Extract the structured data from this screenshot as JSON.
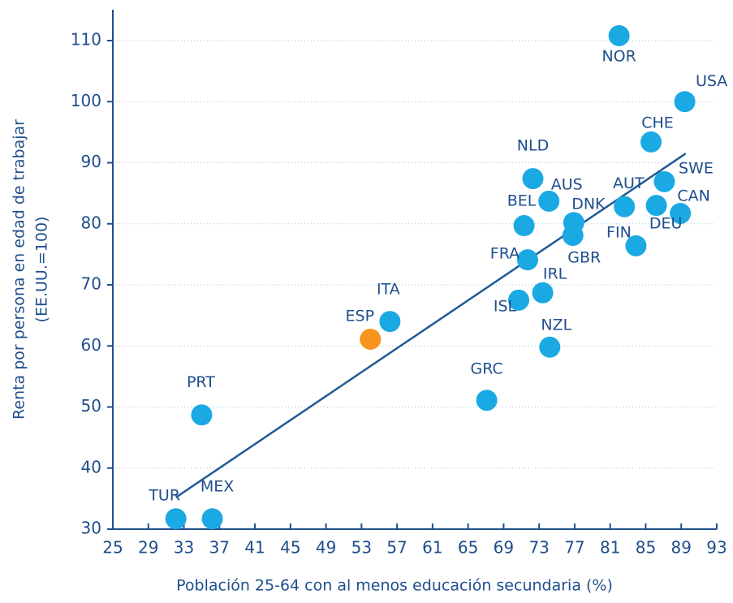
{
  "chart_data": {
    "type": "scatter",
    "xlabel": "Población 25-64 con al menos educación secundaria (%)",
    "ylabel": [
      "Renta por persona en edad de trabajar",
      "(EE.UU.=100)"
    ],
    "labels": [
      "NOR",
      "USA",
      "CHE",
      "SWE",
      "NLD",
      "AUS",
      "AUT",
      "CAN",
      "DEU",
      "BEL",
      "DNK",
      "GBR",
      "FIN",
      "FRA",
      "IRL",
      "ISL",
      "ITA",
      "ESP",
      "NZL",
      "GRC",
      "PRT",
      "TUR",
      "MEX"
    ],
    "x": [
      82.0,
      89.4,
      85.6,
      87.1,
      72.3,
      74.1,
      82.6,
      86.2,
      88.9,
      71.3,
      76.9,
      76.8,
      83.9,
      71.7,
      73.4,
      70.7,
      56.2,
      54.0,
      74.2,
      67.1,
      35.0,
      32.1,
      36.2
    ],
    "values": [
      110.8,
      100.0,
      93.4,
      86.9,
      87.4,
      83.7,
      82.8,
      83.0,
      81.7,
      79.7,
      80.2,
      78.1,
      76.4,
      74.1,
      68.7,
      67.5,
      64.0,
      61.1,
      59.8,
      51.1,
      48.7,
      31.7,
      31.7
    ],
    "colors": [
      "#1aa9e3",
      "#1aa9e3",
      "#1aa9e3",
      "#1aa9e3",
      "#1aa9e3",
      "#1aa9e3",
      "#1aa9e3",
      "#1aa9e3",
      "#1aa9e3",
      "#1aa9e3",
      "#1aa9e3",
      "#1aa9e3",
      "#1aa9e3",
      "#1aa9e3",
      "#1aa9e3",
      "#1aa9e3",
      "#1aa9e3",
      "#f7941d",
      "#1aa9e3",
      "#1aa9e3",
      "#1aa9e3",
      "#1aa9e3",
      "#1aa9e3"
    ],
    "trendline": {
      "x": [
        32.1,
        89.5
      ],
      "y": [
        35.2,
        91.5
      ],
      "color": "#1f5a96"
    },
    "xlim": [
      25,
      93
    ],
    "xticks": [
      25,
      29,
      33,
      37,
      41,
      45,
      49,
      53,
      57,
      61,
      65,
      69,
      73,
      77,
      81,
      85,
      89,
      93
    ],
    "ylim": [
      30,
      110
    ],
    "yticks": [
      30,
      40,
      50,
      60,
      70,
      80,
      90,
      100,
      110
    ],
    "grid": true
  }
}
